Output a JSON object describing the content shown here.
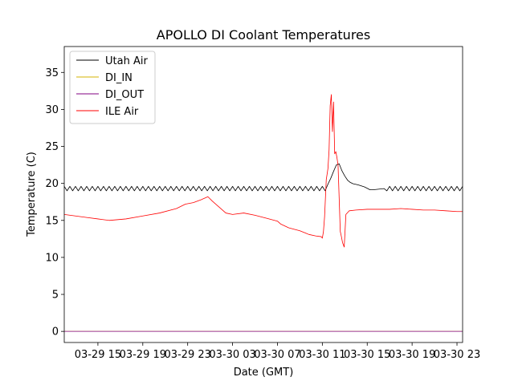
{
  "chart_data": {
    "type": "line",
    "title": "APOLLO DI Coolant Temperatures",
    "xlabel": "Date (GMT)",
    "ylabel": "Temperature (C)",
    "x_unit": "hours since 03-29 12:00 GMT",
    "xlim": [
      0,
      35.5
    ],
    "ylim": [
      -1.5,
      38.5
    ],
    "yticks": [
      0,
      5,
      10,
      15,
      20,
      25,
      30,
      35
    ],
    "xticks": [
      {
        "value": 3,
        "label": "03-29 15"
      },
      {
        "value": 7,
        "label": "03-29 19"
      },
      {
        "value": 11,
        "label": "03-29 23"
      },
      {
        "value": 15,
        "label": "03-30 03"
      },
      {
        "value": 19,
        "label": "03-30 07"
      },
      {
        "value": 23,
        "label": "03-30 11"
      },
      {
        "value": 27,
        "label": "03-30 15"
      },
      {
        "value": 31,
        "label": "03-30 19"
      },
      {
        "value": 35,
        "label": "03-30 23"
      }
    ],
    "legend_position": "top-left",
    "series": [
      {
        "name": "Utah Air",
        "color": "#000000",
        "style": "sawtooth",
        "cycle_hours": 0.5,
        "low": 19.0,
        "high": 19.6,
        "x": [
          0,
          23.3,
          23.7,
          24.1,
          24.4,
          24.6,
          24.8,
          25.2,
          25.6,
          26.2,
          26.8,
          27.3,
          28.5,
          35.5
        ],
        "values": [
          19.3,
          19.3,
          20.5,
          22.0,
          23.0,
          22.3,
          21.5,
          20.5,
          20.0,
          19.8,
          19.5,
          19.1,
          19.3,
          19.3
        ]
      },
      {
        "name": "DI_IN",
        "color": "#d4b300",
        "x": [
          0,
          35.5
        ],
        "values": [
          0,
          0
        ]
      },
      {
        "name": "DI_OUT",
        "color": "#800080",
        "x": [
          0,
          35.5
        ],
        "values": [
          0,
          0
        ]
      },
      {
        "name": "ILE Air",
        "color": "#ff0000",
        "x": [
          0,
          1.0,
          2.0,
          3.0,
          4.0,
          5.5,
          7.0,
          8.5,
          10.0,
          10.8,
          11.5,
          12.2,
          12.8,
          13.2,
          13.8,
          14.4,
          15.0,
          16.0,
          17.0,
          18.0,
          19.0,
          19.3,
          20.0,
          21.0,
          21.8,
          22.4,
          22.9,
          23.0,
          23.1,
          23.2,
          23.35,
          23.45,
          23.5,
          23.6,
          23.7,
          23.8,
          23.9,
          24.0,
          24.1,
          24.2,
          24.3,
          24.4,
          24.5,
          24.6,
          24.7,
          24.8,
          24.95,
          25.1,
          25.4,
          26.0,
          27.0,
          28.0,
          29.0,
          30.0,
          31.0,
          32.0,
          33.0,
          34.0,
          35.0,
          35.5
        ],
        "values": [
          15.8,
          15.6,
          15.4,
          15.2,
          15.0,
          15.2,
          15.6,
          16.0,
          16.6,
          17.2,
          17.4,
          17.8,
          18.2,
          17.6,
          16.8,
          16.0,
          15.8,
          16.0,
          15.7,
          15.3,
          14.9,
          14.5,
          14.0,
          13.6,
          13.1,
          12.9,
          12.8,
          12.6,
          13.5,
          15.5,
          20.5,
          21.5,
          22.0,
          24.5,
          30.5,
          32.0,
          27.0,
          31.0,
          24.0,
          24.3,
          23.5,
          22.5,
          18.0,
          13.5,
          12.8,
          12.0,
          11.4,
          15.8,
          16.3,
          16.4,
          16.5,
          16.5,
          16.5,
          16.6,
          16.5,
          16.4,
          16.4,
          16.3,
          16.2,
          16.2
        ]
      }
    ]
  }
}
